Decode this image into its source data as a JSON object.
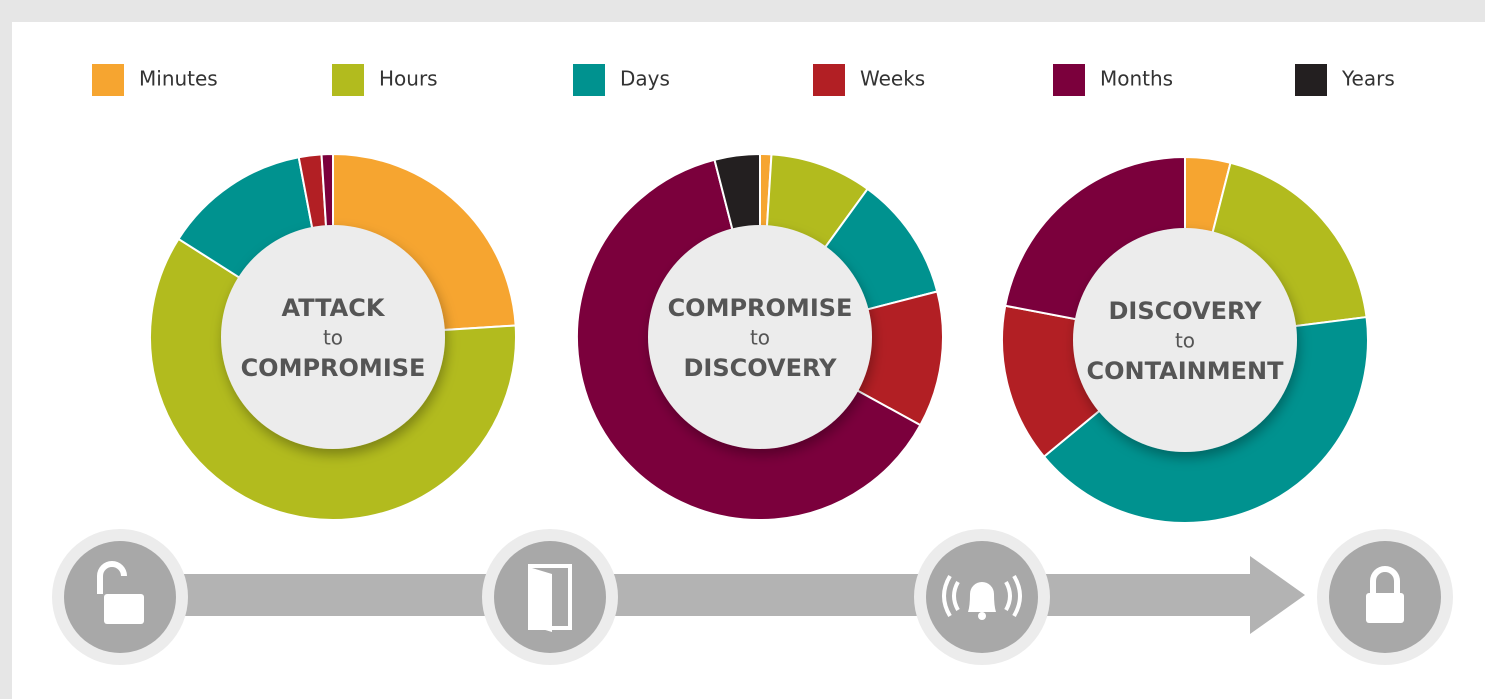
{
  "chart_data": [
    {
      "type": "donut",
      "title": [
        "ATTACK",
        "to",
        "COMPROMISE"
      ],
      "categories": [
        "Minutes",
        "Hours",
        "Days",
        "Weeks",
        "Months",
        "Years"
      ],
      "colors": [
        "#f6a530",
        "#b2bb1e",
        "#00928f",
        "#b21f24",
        "#7b003c",
        "#231f20"
      ],
      "values": [
        24,
        60,
        13,
        2,
        1,
        0
      ]
    },
    {
      "type": "donut",
      "title": [
        "COMPROMISE",
        "to",
        "DISCOVERY"
      ],
      "categories": [
        "Minutes",
        "Hours",
        "Days",
        "Weeks",
        "Months",
        "Years"
      ],
      "colors": [
        "#f6a530",
        "#b2bb1e",
        "#00928f",
        "#b21f24",
        "#7b003c",
        "#231f20"
      ],
      "values": [
        1,
        9,
        11,
        12,
        63,
        4
      ]
    },
    {
      "type": "donut",
      "title": [
        "DISCOVERY",
        "to",
        "CONTAINMENT"
      ],
      "categories": [
        "Minutes",
        "Hours",
        "Days",
        "Weeks",
        "Months",
        "Years"
      ],
      "colors": [
        "#f6a530",
        "#b2bb1e",
        "#00928f",
        "#b21f24",
        "#7b003c",
        "#231f20"
      ],
      "values": [
        4,
        19,
        41,
        14,
        22,
        0
      ]
    }
  ]
}
